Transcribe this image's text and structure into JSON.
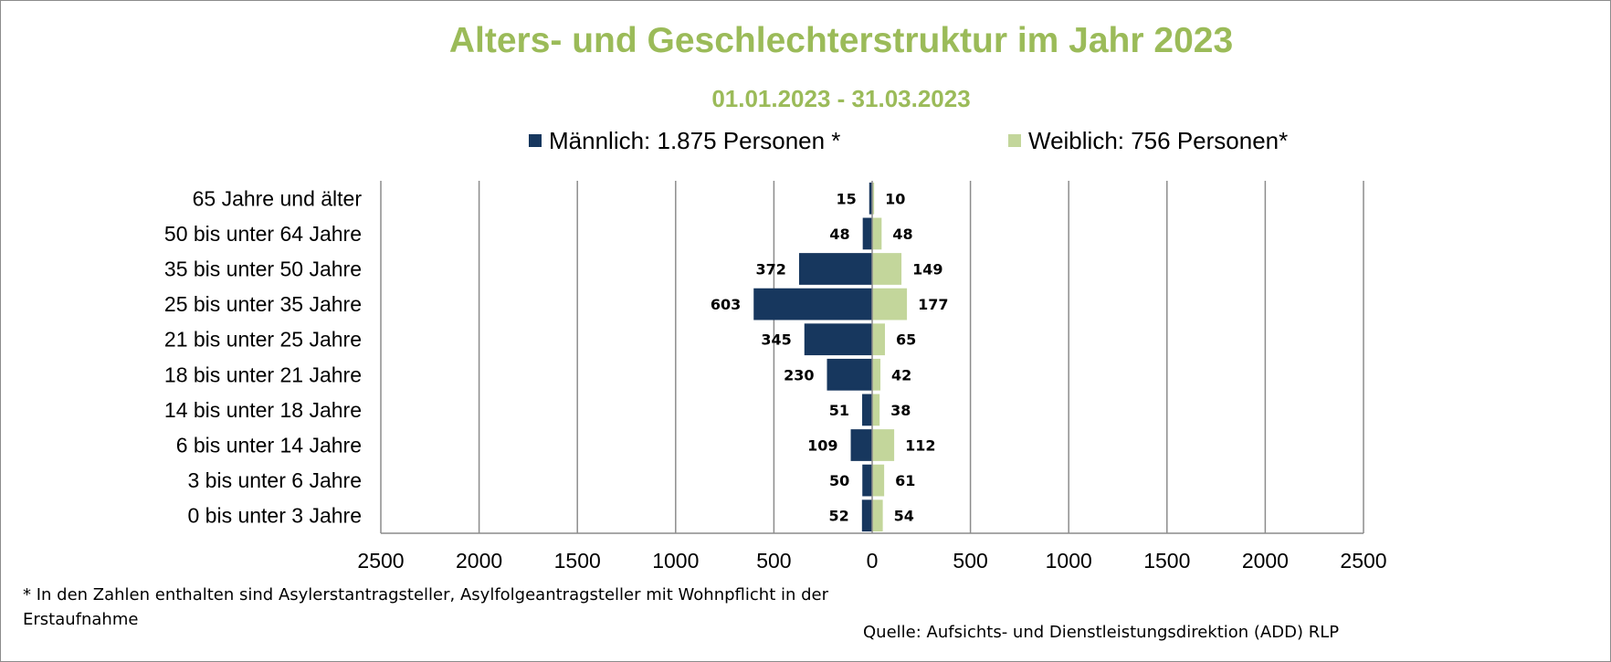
{
  "chart_data": {
    "type": "bar",
    "orientation": "horizontal",
    "layout": "population pyramid",
    "title": "Alters- und Geschlechterstruktur im Jahr 2023",
    "subtitle": "01.01.2023 - 31.03.2023",
    "categories": [
      "65 Jahre und älter",
      "50 bis unter 64 Jahre",
      "35 bis unter 50 Jahre",
      "25 bis unter 35 Jahre",
      "21 bis unter 25 Jahre",
      "18 bis unter 21 Jahre",
      "14 bis unter 18 Jahre",
      "6 bis unter 14 Jahre",
      "3 bis unter 6 Jahre",
      "0 bis unter 3 Jahre"
    ],
    "series": [
      {
        "name": "Männlich: 1.875 Personen *",
        "side": "left",
        "color": "#17375e",
        "values": [
          15,
          48,
          372,
          603,
          345,
          230,
          51,
          109,
          50,
          52
        ]
      },
      {
        "name": "Weiblich: 756 Personen*",
        "side": "right",
        "color": "#c3d69b",
        "values": [
          10,
          48,
          149,
          177,
          65,
          42,
          38,
          112,
          61,
          54
        ]
      }
    ],
    "xlim": [
      -2500,
      2500
    ],
    "xticks": [
      -2500,
      -2000,
      -1500,
      -1000,
      -500,
      0,
      500,
      1000,
      1500,
      2000,
      2500
    ],
    "xtick_labels": [
      "2500",
      "2000",
      "1500",
      "1000",
      "500",
      "0",
      "500",
      "1000",
      "1500",
      "2000",
      "2500"
    ],
    "grid": true,
    "legend": "top"
  },
  "footnote": "* In den Zahlen enthalten sind Asylerstantragsteller, Asylfolgeantragsteller mit Wohnpflicht in der Erstaufnahme",
  "source": "Quelle: Aufsichts- und Dienstleistungsdirektion (ADD) RLP"
}
